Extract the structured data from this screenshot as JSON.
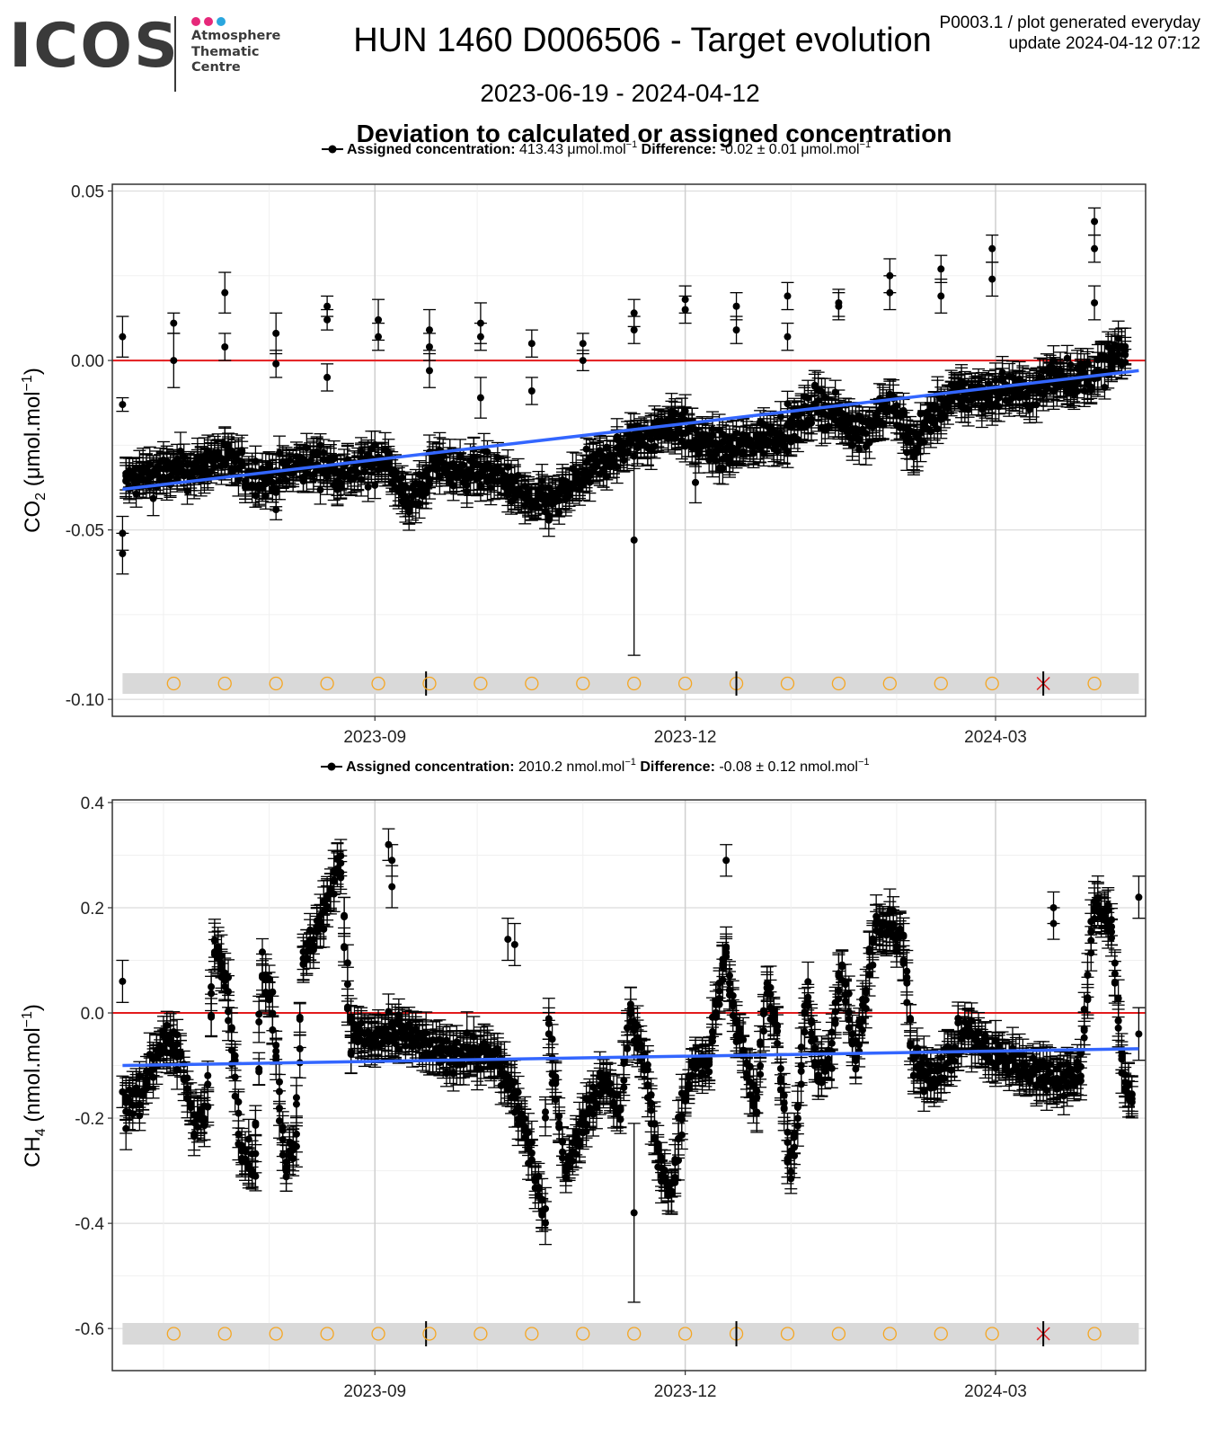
{
  "header": {
    "logo_text": "ICOS",
    "centre_lines": [
      "Atmosphere",
      "Thematic",
      "Centre"
    ],
    "logo_dot_colors": [
      "#e6287a",
      "#e6287a",
      "#2aa6de"
    ],
    "title": "HUN 1460 D006506 - Target evolution",
    "date_range": "2023-06-19 - 2024-04-12",
    "info_line1": "P0003.1 / plot generated everyday",
    "info_line2": "update  2024-04-12 07:12"
  },
  "figure_title": "Deviation to calculated or assigned concentration",
  "colors": {
    "points": "#000000",
    "trend": "#3366ff",
    "zero_line": "#e31a1c",
    "status_band": "#d9d9d9",
    "status_circle": "#f5a623",
    "status_cross": "#e31a1c"
  },
  "x_ticks": [
    "2023-09",
    "2023-12",
    "2024-03"
  ],
  "chart_data": [
    {
      "type": "scatter",
      "gas": "CO2",
      "legend": {
        "label1": "Assigned concentration:",
        "value1": "413.43 μmol.mol",
        "sup1": "−1",
        "label2": "Difference:",
        "value2": "-0.02 ± 0.01 μmol.mol",
        "sup2": "−1"
      },
      "ylabel_main": "CO",
      "ylabel_sub": "2",
      "ylabel_unit": " (μmol.mol",
      "ylabel_sup": "−1",
      "ylabel_close": ")",
      "y_ticks": [
        "0.05",
        "0.00",
        "-0.05",
        "-0.10"
      ],
      "ylim": [
        -0.105,
        0.052
      ],
      "xlim": [
        "2023-06-16",
        "2024-04-14"
      ],
      "baseline_y": 0,
      "grid": true,
      "trend": {
        "start": [
          "2023-06-19",
          -0.038
        ],
        "end": [
          "2024-04-12",
          -0.003
        ]
      },
      "outliers": [
        [
          "2023-06-19",
          0.007,
          0.006
        ],
        [
          "2023-06-19",
          -0.013,
          0.002
        ],
        [
          "2023-06-19",
          -0.051,
          0.005
        ],
        [
          "2023-06-19",
          -0.057,
          0.006
        ],
        [
          "2023-07-04",
          0.011,
          0.003
        ],
        [
          "2023-07-04",
          0.0,
          0.008
        ],
        [
          "2023-07-19",
          0.02,
          0.006
        ],
        [
          "2023-07-19",
          0.004,
          0.004
        ],
        [
          "2023-08-03",
          0.008,
          0.006
        ],
        [
          "2023-08-03",
          -0.001,
          0.004
        ],
        [
          "2023-08-03",
          -0.044,
          0.003
        ],
        [
          "2023-08-18",
          0.016,
          0.003
        ],
        [
          "2023-08-18",
          0.012,
          0.003
        ],
        [
          "2023-08-18",
          -0.005,
          0.004
        ],
        [
          "2023-09-02",
          0.012,
          0.006
        ],
        [
          "2023-09-02",
          0.007,
          0.004
        ],
        [
          "2023-09-17",
          0.009,
          0.006
        ],
        [
          "2023-09-17",
          0.004,
          0.004
        ],
        [
          "2023-09-17",
          -0.003,
          0.005
        ],
        [
          "2023-10-02",
          0.011,
          0.006
        ],
        [
          "2023-10-02",
          0.007,
          0.004
        ],
        [
          "2023-10-02",
          -0.011,
          0.006
        ],
        [
          "2023-10-17",
          0.005,
          0.004
        ],
        [
          "2023-10-17",
          -0.009,
          0.004
        ],
        [
          "2023-11-01",
          0.005,
          0.003
        ],
        [
          "2023-11-01",
          0.0,
          0.003
        ],
        [
          "2023-11-16",
          0.014,
          0.004
        ],
        [
          "2023-11-16",
          0.009,
          0.004
        ],
        [
          "2023-11-16",
          -0.053,
          0.034
        ],
        [
          "2023-12-01",
          0.018,
          0.004
        ],
        [
          "2023-12-01",
          0.015,
          0.004
        ],
        [
          "2023-12-04",
          -0.036,
          0.006
        ],
        [
          "2023-12-16",
          0.016,
          0.004
        ],
        [
          "2023-12-16",
          0.009,
          0.004
        ],
        [
          "2023-12-31",
          0.019,
          0.004
        ],
        [
          "2023-12-31",
          0.007,
          0.004
        ],
        [
          "2024-01-15",
          0.017,
          0.004
        ],
        [
          "2024-01-15",
          0.016,
          0.004
        ],
        [
          "2024-01-30",
          0.025,
          0.005
        ],
        [
          "2024-01-30",
          0.02,
          0.005
        ],
        [
          "2024-02-14",
          0.027,
          0.004
        ],
        [
          "2024-02-14",
          0.019,
          0.005
        ],
        [
          "2024-02-29",
          0.033,
          0.004
        ],
        [
          "2024-02-29",
          0.024,
          0.005
        ],
        [
          "2024-03-30",
          0.041,
          0.004
        ],
        [
          "2024-03-30",
          0.033,
          0.004
        ],
        [
          "2024-03-30",
          0.017,
          0.005
        ]
      ],
      "dense_points": [
        [
          "2023-06-20",
          -0.036
        ],
        [
          "2023-06-27",
          -0.034
        ],
        [
          "2023-07-04",
          -0.033
        ],
        [
          "2023-07-11",
          -0.032
        ],
        [
          "2023-07-18",
          -0.028
        ],
        [
          "2023-07-25",
          -0.033
        ],
        [
          "2023-08-01",
          -0.035
        ],
        [
          "2023-08-08",
          -0.032
        ],
        [
          "2023-08-15",
          -0.03
        ],
        [
          "2023-08-22",
          -0.033
        ],
        [
          "2023-08-29",
          -0.032
        ],
        [
          "2023-09-05",
          -0.028
        ],
        [
          "2023-09-08",
          -0.038
        ],
        [
          "2023-09-12",
          -0.042
        ],
        [
          "2023-09-19",
          -0.03
        ],
        [
          "2023-09-26",
          -0.033
        ],
        [
          "2023-10-03",
          -0.032
        ],
        [
          "2023-10-10",
          -0.036
        ],
        [
          "2023-10-17",
          -0.042
        ],
        [
          "2023-10-24",
          -0.042
        ],
        [
          "2023-10-31",
          -0.035
        ],
        [
          "2023-11-07",
          -0.03
        ],
        [
          "2023-11-14",
          -0.025
        ],
        [
          "2023-11-21",
          -0.022
        ],
        [
          "2023-11-28",
          -0.018
        ],
        [
          "2023-12-05",
          -0.024
        ],
        [
          "2023-12-12",
          -0.027
        ],
        [
          "2023-12-19",
          -0.025
        ],
        [
          "2023-12-26",
          -0.022
        ],
        [
          "2024-01-02",
          -0.02
        ],
        [
          "2024-01-09",
          -0.012
        ],
        [
          "2024-01-16",
          -0.018
        ],
        [
          "2024-01-23",
          -0.021
        ],
        [
          "2024-01-30",
          -0.012
        ],
        [
          "2024-02-06",
          -0.025
        ],
        [
          "2024-02-13",
          -0.015
        ],
        [
          "2024-02-20",
          -0.01
        ],
        [
          "2024-02-27",
          -0.01
        ],
        [
          "2024-03-05",
          -0.008
        ],
        [
          "2024-03-12",
          -0.01
        ],
        [
          "2024-03-19",
          -0.004
        ],
        [
          "2024-03-26",
          -0.006
        ],
        [
          "2024-04-02",
          -0.002
        ],
        [
          "2024-04-09",
          0.003
        ]
      ],
      "dense_noise": 0.005,
      "dense_err": 0.004,
      "status_markers": [
        {
          "date": "2023-07-04",
          "kind": "circle"
        },
        {
          "date": "2023-07-19",
          "kind": "circle"
        },
        {
          "date": "2023-08-03",
          "kind": "circle"
        },
        {
          "date": "2023-08-18",
          "kind": "circle"
        },
        {
          "date": "2023-09-02",
          "kind": "circle"
        },
        {
          "date": "2023-09-16",
          "kind": "tick"
        },
        {
          "date": "2023-09-17",
          "kind": "circle"
        },
        {
          "date": "2023-10-02",
          "kind": "circle"
        },
        {
          "date": "2023-10-17",
          "kind": "circle"
        },
        {
          "date": "2023-11-01",
          "kind": "circle"
        },
        {
          "date": "2023-11-16",
          "kind": "circle"
        },
        {
          "date": "2023-12-01",
          "kind": "circle"
        },
        {
          "date": "2023-12-16",
          "kind": "circle"
        },
        {
          "date": "2023-12-16",
          "kind": "tick"
        },
        {
          "date": "2023-12-31",
          "kind": "circle"
        },
        {
          "date": "2024-01-15",
          "kind": "circle"
        },
        {
          "date": "2024-01-30",
          "kind": "circle"
        },
        {
          "date": "2024-02-14",
          "kind": "circle"
        },
        {
          "date": "2024-02-29",
          "kind": "circle"
        },
        {
          "date": "2024-03-15",
          "kind": "cross"
        },
        {
          "date": "2024-03-30",
          "kind": "circle"
        }
      ]
    },
    {
      "type": "scatter",
      "gas": "CH4",
      "legend": {
        "label1": "Assigned concentration:",
        "value1": "2010.2 nmol.mol",
        "sup1": "−1",
        "label2": "Difference:",
        "value2": "-0.08 ± 0.12 nmol.mol",
        "sup2": "−1"
      },
      "ylabel_main": "CH",
      "ylabel_sub": "4",
      "ylabel_unit": " (nmol.mol",
      "ylabel_sup": "−1",
      "ylabel_close": ")",
      "y_ticks": [
        "0.4",
        "0.2",
        "0.0",
        "-0.2",
        "-0.4",
        "-0.6"
      ],
      "ylim": [
        -0.68,
        0.405
      ],
      "xlim": [
        "2023-06-16",
        "2024-04-14"
      ],
      "baseline_y": 0,
      "grid": true,
      "trend": {
        "start": [
          "2023-06-19",
          -0.1
        ],
        "end": [
          "2024-04-12",
          -0.068
        ]
      },
      "outliers": [
        [
          "2023-06-19",
          0.06,
          0.04
        ],
        [
          "2023-06-19",
          -0.15,
          0.03
        ],
        [
          "2023-06-20",
          -0.22,
          0.04
        ],
        [
          "2023-09-05",
          0.32,
          0.03
        ],
        [
          "2023-09-06",
          0.29,
          0.03
        ],
        [
          "2023-09-06",
          0.24,
          0.04
        ],
        [
          "2023-10-10",
          0.14,
          0.04
        ],
        [
          "2023-10-12",
          0.13,
          0.04
        ],
        [
          "2023-11-16",
          -0.38,
          0.17
        ],
        [
          "2023-12-13",
          0.29,
          0.03
        ],
        [
          "2024-03-18",
          0.2,
          0.03
        ],
        [
          "2024-03-18",
          0.17,
          0.03
        ],
        [
          "2024-04-12",
          0.22,
          0.04
        ],
        [
          "2024-04-12",
          -0.04,
          0.05
        ]
      ],
      "dense_points": [
        [
          "2023-06-20",
          -0.17
        ],
        [
          "2023-06-25",
          -0.15
        ],
        [
          "2023-07-01",
          -0.05
        ],
        [
          "2023-07-06",
          -0.08
        ],
        [
          "2023-07-10",
          -0.2
        ],
        [
          "2023-07-14",
          -0.19
        ],
        [
          "2023-07-16",
          0.13
        ],
        [
          "2023-07-20",
          0.05
        ],
        [
          "2023-07-24",
          -0.25
        ],
        [
          "2023-07-28",
          -0.3
        ],
        [
          "2023-07-30",
          0.08
        ],
        [
          "2023-08-02",
          0.02
        ],
        [
          "2023-08-06",
          -0.29
        ],
        [
          "2023-08-09",
          -0.23
        ],
        [
          "2023-08-11",
          0.08
        ],
        [
          "2023-08-15",
          0.16
        ],
        [
          "2023-08-19",
          0.22
        ],
        [
          "2023-08-22",
          0.31
        ],
        [
          "2023-08-25",
          -0.04
        ],
        [
          "2023-09-01",
          -0.05
        ],
        [
          "2023-09-10",
          -0.04
        ],
        [
          "2023-09-20",
          -0.08
        ],
        [
          "2023-09-30",
          -0.07
        ],
        [
          "2023-10-07",
          -0.09
        ],
        [
          "2023-10-12",
          -0.15
        ],
        [
          "2023-10-18",
          -0.3
        ],
        [
          "2023-10-21",
          -0.38
        ],
        [
          "2023-10-22",
          -0.02
        ],
        [
          "2023-10-27",
          -0.3
        ],
        [
          "2023-11-02",
          -0.2
        ],
        [
          "2023-11-08",
          -0.12
        ],
        [
          "2023-11-12",
          -0.2
        ],
        [
          "2023-11-15",
          0.0
        ],
        [
          "2023-11-20",
          -0.12
        ],
        [
          "2023-11-24",
          -0.3
        ],
        [
          "2023-11-27",
          -0.35
        ],
        [
          "2023-11-30",
          -0.2
        ],
        [
          "2023-12-03",
          -0.1
        ],
        [
          "2023-12-08",
          -0.1
        ],
        [
          "2023-12-13",
          0.12
        ],
        [
          "2023-12-16",
          -0.02
        ],
        [
          "2023-12-19",
          -0.1
        ],
        [
          "2023-12-22",
          -0.18
        ],
        [
          "2023-12-25",
          0.05
        ],
        [
          "2023-12-28",
          -0.03
        ],
        [
          "2024-01-01",
          -0.3
        ],
        [
          "2024-01-03",
          -0.22
        ],
        [
          "2024-01-06",
          0.05
        ],
        [
          "2024-01-09",
          -0.12
        ],
        [
          "2024-01-13",
          -0.07
        ],
        [
          "2024-01-16",
          0.1
        ],
        [
          "2024-01-20",
          -0.09
        ],
        [
          "2024-01-26",
          0.16
        ],
        [
          "2024-01-30",
          0.16
        ],
        [
          "2024-02-03",
          0.15
        ],
        [
          "2024-02-06",
          -0.1
        ],
        [
          "2024-02-12",
          -0.12
        ],
        [
          "2024-02-17",
          -0.08
        ],
        [
          "2024-02-22",
          -0.03
        ],
        [
          "2024-02-28",
          -0.08
        ],
        [
          "2024-03-05",
          -0.09
        ],
        [
          "2024-03-12",
          -0.11
        ],
        [
          "2024-03-20",
          -0.12
        ],
        [
          "2024-03-26",
          -0.12
        ],
        [
          "2024-03-30",
          0.2
        ],
        [
          "2024-04-04",
          0.18
        ],
        [
          "2024-04-08",
          -0.15
        ],
        [
          "2024-04-11",
          -0.15
        ]
      ],
      "dense_noise": 0.03,
      "dense_err": 0.03,
      "status_markers": [
        {
          "date": "2023-07-04",
          "kind": "circle"
        },
        {
          "date": "2023-07-19",
          "kind": "circle"
        },
        {
          "date": "2023-08-03",
          "kind": "circle"
        },
        {
          "date": "2023-08-18",
          "kind": "circle"
        },
        {
          "date": "2023-09-02",
          "kind": "circle"
        },
        {
          "date": "2023-09-16",
          "kind": "tick"
        },
        {
          "date": "2023-09-17",
          "kind": "circle"
        },
        {
          "date": "2023-10-02",
          "kind": "circle"
        },
        {
          "date": "2023-10-17",
          "kind": "circle"
        },
        {
          "date": "2023-11-01",
          "kind": "circle"
        },
        {
          "date": "2023-11-16",
          "kind": "circle"
        },
        {
          "date": "2023-12-01",
          "kind": "circle"
        },
        {
          "date": "2023-12-16",
          "kind": "circle"
        },
        {
          "date": "2023-12-16",
          "kind": "tick"
        },
        {
          "date": "2023-12-31",
          "kind": "circle"
        },
        {
          "date": "2024-01-15",
          "kind": "circle"
        },
        {
          "date": "2024-01-30",
          "kind": "circle"
        },
        {
          "date": "2024-02-14",
          "kind": "circle"
        },
        {
          "date": "2024-02-29",
          "kind": "circle"
        },
        {
          "date": "2024-03-15",
          "kind": "cross"
        },
        {
          "date": "2024-03-30",
          "kind": "circle"
        }
      ]
    }
  ]
}
